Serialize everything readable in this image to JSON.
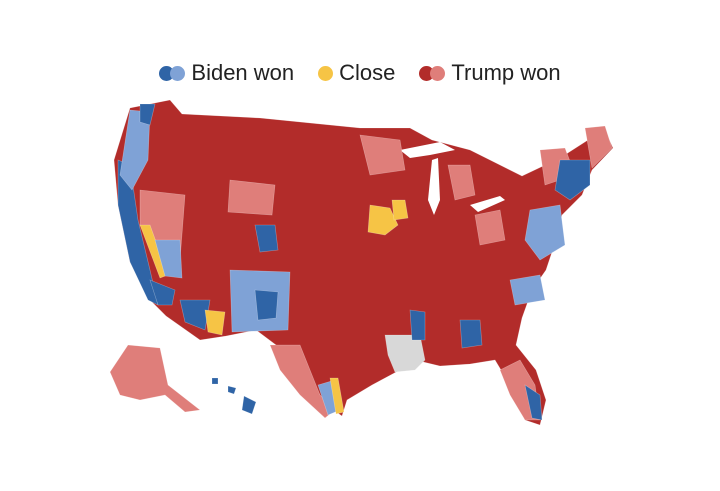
{
  "legend": {
    "biden": {
      "label": "Biden won",
      "colors": [
        "#2f64a6",
        "#7fa2d6"
      ]
    },
    "close": {
      "label": "Close",
      "colors": [
        "#f6c445"
      ]
    },
    "trump": {
      "label": "Trump won",
      "colors": [
        "#b22c2a",
        "#df7e7a"
      ]
    }
  },
  "colors": {
    "no_data": "#d8d8d8",
    "water": "#ffffff"
  }
}
